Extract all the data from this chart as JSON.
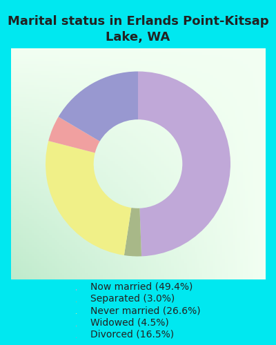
{
  "title": "Marital status in Erlands Point-Kitsap\nLake, WA",
  "title_fontsize": 13,
  "background_color": "#00e8f0",
  "chart_bg_gradient_colors": [
    "#e8f5e8",
    "#d0ead8",
    "#c8e8d0"
  ],
  "slices": [
    {
      "label": "Now married (49.4%)",
      "value": 49.4,
      "color": "#c0a8d8"
    },
    {
      "label": "Separated (3.0%)",
      "value": 3.0,
      "color": "#a8b888"
    },
    {
      "label": "Never married (26.6%)",
      "value": 26.6,
      "color": "#f0f088"
    },
    {
      "label": "Widowed (4.5%)",
      "value": 4.5,
      "color": "#f0a0a0"
    },
    {
      "label": "Divorced (16.5%)",
      "value": 16.5,
      "color": "#9898d0"
    }
  ],
  "donut_width": 0.52,
  "legend_fontsize": 10,
  "startangle": 90,
  "legend_circle_size": 10
}
